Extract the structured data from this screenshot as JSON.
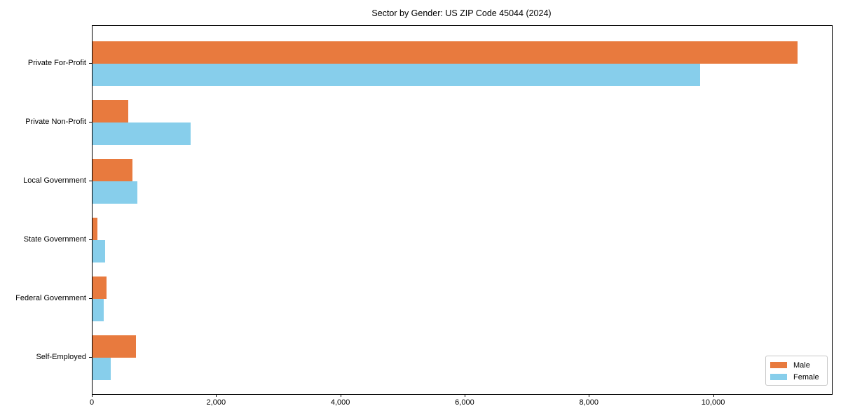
{
  "chart_data": {
    "type": "bar",
    "orientation": "horizontal",
    "title": "Sector by Gender: US ZIP Code 45044 (2024)",
    "categories": [
      "Private For-Profit",
      "Private Non-Profit",
      "Local Government",
      "State Government",
      "Federal Government",
      "Self-Employed"
    ],
    "series": [
      {
        "name": "Male",
        "color": "#E87A3E",
        "values": [
          11350,
          575,
          640,
          75,
          220,
          700
        ]
      },
      {
        "name": "Female",
        "color": "#87CEEB",
        "values": [
          9780,
          1575,
          720,
          205,
          180,
          295
        ]
      }
    ],
    "xlabel": "",
    "ylabel": "",
    "xlim": [
      0,
      11900
    ],
    "xticks": [
      0,
      2000,
      4000,
      6000,
      8000,
      10000
    ],
    "xtick_labels": [
      "0",
      "2,000",
      "4,000",
      "6,000",
      "8,000",
      "10,000"
    ],
    "grid": false,
    "legend_position": "lower right"
  },
  "colors": {
    "spine": "#000000",
    "text": "#000000",
    "legend_border": "#c8c8c8",
    "background": "#ffffff"
  }
}
